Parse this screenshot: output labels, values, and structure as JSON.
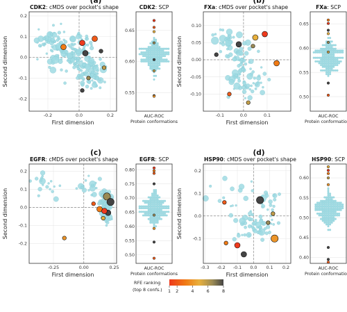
{
  "colors": {
    "point_default": "#9fdbe3",
    "point_edge": "#7fc4ce",
    "grid": "#e7e7e7",
    "zero_line": "#888888",
    "rank_scale": [
      "#ee3a1d",
      "#f07a14",
      "#e8b03d",
      "#9a8a55",
      "#444444"
    ]
  },
  "chart_data": [
    {
      "id": "a",
      "letter": "(a)",
      "target": "CDK2",
      "title_cmds": "cMDS over pocket's shape",
      "title_scp": "SCP",
      "type": "scatter",
      "xlabel": "First dimension",
      "ylabel": "Second dimension",
      "xlim": [
        -0.32,
        0.24
      ],
      "ylim": [
        -0.26,
        0.22
      ],
      "xticks": [
        -0.2,
        0.0,
        0.2
      ],
      "xtick_labels": [
        "-0.2",
        "0.0",
        "0.2"
      ],
      "yticks": [
        -0.2,
        -0.1,
        0.0,
        0.1,
        0.2
      ],
      "ytick_labels": [
        "-0.2",
        "-0.1",
        "0.0",
        "0.1",
        "0.2"
      ],
      "ranked_points": [
        {
          "x": -0.1,
          "y": 0.05,
          "rank": 3,
          "size": 2
        },
        {
          "x": 0.02,
          "y": 0.07,
          "rank": 1,
          "size": 2
        },
        {
          "x": 0.1,
          "y": 0.09,
          "rank": 2,
          "size": 2
        },
        {
          "x": 0.04,
          "y": 0.02,
          "rank": 8,
          "size": 2
        },
        {
          "x": 0.14,
          "y": 0.03,
          "rank": 8,
          "size": 1
        },
        {
          "x": 0.06,
          "y": -0.1,
          "rank": 7,
          "size": 1
        },
        {
          "x": 0.16,
          "y": -0.05,
          "rank": 6,
          "size": 1
        },
        {
          "x": 0.02,
          "y": -0.16,
          "rank": 8,
          "size": 1
        }
      ],
      "scp": {
        "xlabel": "AUC-ROC",
        "xlabel2": "Protein conformations",
        "ylim": [
          0.52,
          0.68
        ],
        "yticks": [
          0.55,
          0.6,
          0.65
        ],
        "ytick_labels": [
          "0.55",
          "0.60",
          "0.65"
        ],
        "ranked": [
          0.666,
          0.655,
          0.648,
          0.63,
          0.603,
          0.585,
          0.545,
          0.544
        ],
        "ranks": [
          1,
          2,
          5,
          7,
          8,
          6,
          8,
          4
        ]
      }
    },
    {
      "id": "b",
      "letter": "(b)",
      "target": "FXa",
      "title_cmds": "cMDS over pocket's shape",
      "title_scp": "SCP",
      "type": "scatter",
      "xlabel": "First dimension",
      "ylabel": "Second dimension",
      "xlim": [
        -0.17,
        0.2
      ],
      "ylim": [
        -0.15,
        0.14
      ],
      "xticks": [
        -0.1,
        0.0,
        0.1
      ],
      "xtick_labels": [
        "-0.1",
        "0.0",
        "0.1"
      ],
      "yticks": [
        -0.1,
        -0.05,
        0.0,
        0.05,
        0.1
      ],
      "ytick_labels": [
        "-0.10",
        "-0.05",
        "0.00",
        "0.05",
        "0.10"
      ],
      "ranked_points": [
        {
          "x": 0.09,
          "y": 0.075,
          "rank": 1,
          "size": 2
        },
        {
          "x": 0.05,
          "y": 0.065,
          "rank": 5,
          "size": 2
        },
        {
          "x": -0.02,
          "y": 0.045,
          "rank": 8,
          "size": 2
        },
        {
          "x": 0.04,
          "y": 0.04,
          "rank": 7,
          "size": 1
        },
        {
          "x": 0.14,
          "y": -0.01,
          "rank": 3,
          "size": 2
        },
        {
          "x": -0.115,
          "y": 0.015,
          "rank": 8,
          "size": 1
        },
        {
          "x": -0.06,
          "y": -0.1,
          "rank": 2,
          "size": 1
        },
        {
          "x": 0.02,
          "y": -0.125,
          "rank": 6,
          "size": 1
        }
      ],
      "scp": {
        "xlabel": "AUC-ROC",
        "xlabel2": "Protein conformations",
        "ylim": [
          0.47,
          0.675
        ],
        "yticks": [
          0.5,
          0.55,
          0.6,
          0.65
        ],
        "ytick_labels": [
          "0.50",
          "0.55",
          "0.60",
          "0.65"
        ],
        "ranked": [
          0.658,
          0.651,
          0.637,
          0.63,
          0.612,
          0.592,
          0.528,
          0.503
        ],
        "ranks": [
          3,
          1,
          8,
          5,
          7,
          6,
          8,
          2
        ]
      }
    },
    {
      "id": "c",
      "letter": "(c)",
      "target": "EGFR",
      "title_cmds": "cMDS over pocket's shape",
      "title_scp": "SCP",
      "type": "scatter",
      "xlabel": "First dimension",
      "ylabel": "Second dimension",
      "xlim": [
        -0.45,
        0.27
      ],
      "ylim": [
        -0.31,
        0.24
      ],
      "xticks": [
        -0.25,
        0.0,
        0.25
      ],
      "xtick_labels": [
        "-0.25",
        "0.00",
        "0.25"
      ],
      "yticks": [
        -0.2,
        -0.1,
        0.0,
        0.1,
        0.2
      ],
      "ytick_labels": [
        "-0.2",
        "-0.1",
        "0.0",
        "0.1",
        "0.2"
      ],
      "ranked_points": [
        {
          "x": 0.19,
          "y": 0.06,
          "rank": 7,
          "size": 3
        },
        {
          "x": 0.22,
          "y": 0.03,
          "rank": 8,
          "size": 3
        },
        {
          "x": 0.2,
          "y": -0.03,
          "rank": 8,
          "size": 2
        },
        {
          "x": 0.13,
          "y": -0.01,
          "rank": 3,
          "size": 2
        },
        {
          "x": 0.17,
          "y": -0.02,
          "rank": 1,
          "size": 2
        },
        {
          "x": 0.08,
          "y": 0.02,
          "rank": 2,
          "size": 1
        },
        {
          "x": 0.16,
          "y": -0.06,
          "rank": 5,
          "size": 1
        },
        {
          "x": -0.16,
          "y": -0.17,
          "rank": 4,
          "size": 1
        }
      ],
      "scp": {
        "xlabel": "AUC-ROC",
        "xlabel2": "Protein conformations",
        "ylim": [
          0.47,
          0.82
        ],
        "yticks": [
          0.5,
          0.55,
          0.6,
          0.65,
          0.7,
          0.75,
          0.8
        ],
        "ytick_labels": [
          "0.50",
          "0.55",
          "0.60",
          "0.65",
          "0.70",
          "0.75",
          "0.80"
        ],
        "ranked": [
          0.806,
          0.796,
          0.787,
          0.75,
          0.64,
          0.593,
          0.545,
          0.488
        ],
        "ranks": [
          1,
          3,
          2,
          8,
          7,
          4,
          8,
          2
        ]
      }
    },
    {
      "id": "d",
      "letter": "(d)",
      "target": "HSP90",
      "title_cmds": "cMDS over pocket's shape",
      "title_scp": "SCP",
      "type": "scatter",
      "xlabel": "First dimension",
      "ylabel": "Second dimension",
      "xlim": [
        -0.31,
        0.23
      ],
      "ylim": [
        -0.21,
        0.23
      ],
      "xticks": [
        -0.3,
        -0.2,
        -0.1,
        0.0,
        0.1,
        0.2
      ],
      "xtick_labels": [
        "-0.3",
        "-0.2",
        "-0.1",
        "0.0",
        "0.1",
        "0.2"
      ],
      "yticks": [
        -0.1,
        0.0,
        0.1,
        0.2
      ],
      "ytick_labels": [
        "-0.1",
        "0.0",
        "0.1",
        "0.2"
      ],
      "ranked_points": [
        {
          "x": 0.04,
          "y": 0.07,
          "rank": 8,
          "size": 3
        },
        {
          "x": 0.13,
          "y": -0.1,
          "rank": 4,
          "size": 3
        },
        {
          "x": -0.17,
          "y": -0.12,
          "rank": 3,
          "size": 1
        },
        {
          "x": -0.1,
          "y": -0.13,
          "rank": 1,
          "size": 2
        },
        {
          "x": -0.06,
          "y": -0.17,
          "rank": 8,
          "size": 2
        },
        {
          "x": -0.18,
          "y": 0.06,
          "rank": 2,
          "size": 1
        },
        {
          "x": 0.09,
          "y": -0.03,
          "rank": 7,
          "size": 1
        },
        {
          "x": 0.12,
          "y": 0.01,
          "rank": 6,
          "size": 1
        }
      ],
      "scp": {
        "xlabel": "AUC-ROC",
        "xlabel2": "Protein conformations",
        "ylim": [
          0.385,
          0.635
        ],
        "yticks": [
          0.4,
          0.45,
          0.5,
          0.55,
          0.6
        ],
        "ytick_labels": [
          "0.40",
          "0.45",
          "0.50",
          "0.55",
          "0.60"
        ],
        "ranked": [
          0.628,
          0.619,
          0.611,
          0.6,
          0.583,
          0.425,
          0.395,
          0.388
        ],
        "ranks": [
          5,
          1,
          3,
          6,
          4,
          8,
          8,
          2
        ]
      }
    }
  ],
  "legend": {
    "title_line1": "RFE ranking",
    "title_line2": "(top 8 confs.)",
    "tick_values": [
      1,
      2,
      4,
      6,
      8
    ],
    "tick_labels": [
      "1",
      "2",
      "4",
      "6",
      "8"
    ],
    "range": [
      1,
      8
    ]
  }
}
